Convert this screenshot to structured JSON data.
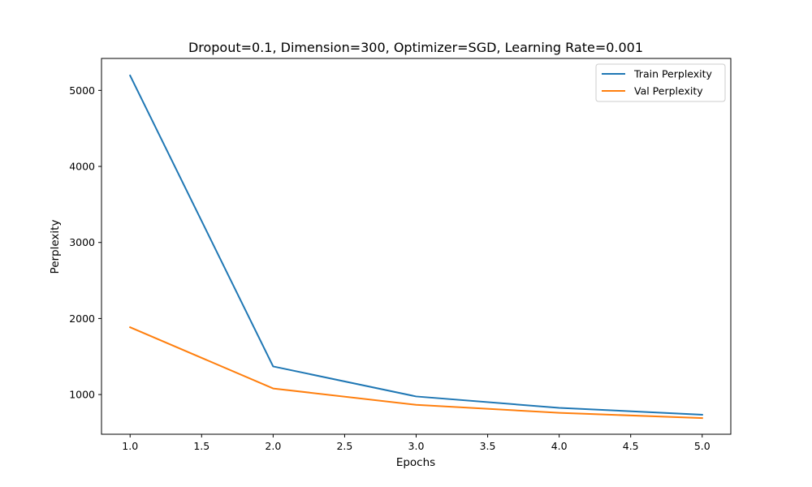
{
  "chart_data": {
    "type": "line",
    "title": "Dropout=0.1, Dimension=300, Optimizer=SGD, Learning Rate=0.001",
    "xlabel": "Epochs",
    "ylabel": "Perplexity",
    "x": [
      1,
      2,
      3,
      4,
      5
    ],
    "xlim": [
      0.8,
      5.2
    ],
    "ylim": [
      478,
      5420
    ],
    "xticks": [
      1.0,
      1.5,
      2.0,
      2.5,
      3.0,
      3.5,
      4.0,
      4.5,
      5.0
    ],
    "xtick_labels": [
      "1.0",
      "1.5",
      "2.0",
      "2.5",
      "3.0",
      "3.5",
      "4.0",
      "4.5",
      "5.0"
    ],
    "yticks": [
      1000,
      2000,
      3000,
      4000,
      5000
    ],
    "ytick_labels": [
      "1000",
      "2000",
      "3000",
      "4000",
      "5000"
    ],
    "grid": false,
    "legend_position": "top-right",
    "series": [
      {
        "name": "Train Perplexity",
        "color": "#1f77b4",
        "values": [
          5195,
          1370,
          975,
          825,
          735
        ]
      },
      {
        "name": "Val Perplexity",
        "color": "#ff7f0e",
        "values": [
          1885,
          1080,
          865,
          760,
          690
        ]
      }
    ]
  }
}
